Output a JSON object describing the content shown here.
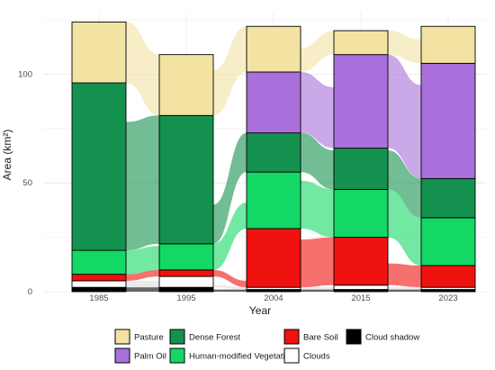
{
  "chart_data": {
    "type": "alluvial",
    "xlabel": "Year",
    "ylabel": "Area (km²)",
    "ylim": [
      0,
      125
    ],
    "yticks": [
      0,
      50,
      100
    ],
    "grid": true,
    "legend_position": "bottom",
    "categories": [
      "1985",
      "1995",
      "2004",
      "2015",
      "2023"
    ],
    "classes": [
      {
        "name": "Pasture",
        "color": "#F2E3A2"
      },
      {
        "name": "Palm Oil",
        "color": "#A970DB"
      },
      {
        "name": "Dense Forest",
        "color": "#15914F"
      },
      {
        "name": "Human-modified Vegetation",
        "color": "#14D865"
      },
      {
        "name": "Bare Soil",
        "color": "#F0120E"
      },
      {
        "name": "Clouds",
        "color": "#FFFFFF"
      },
      {
        "name": "Cloud shadow",
        "color": "#000000"
      }
    ],
    "stack_order_bottom_to_top": [
      "Cloud shadow",
      "Clouds",
      "Bare Soil",
      "Human-modified Vegetation",
      "Dense Forest",
      "Palm Oil",
      "Pasture"
    ],
    "series": [
      {
        "name": "Pasture",
        "values": [
          28,
          28,
          21,
          11,
          17
        ]
      },
      {
        "name": "Palm Oil",
        "values": [
          0,
          0,
          28,
          43,
          53
        ]
      },
      {
        "name": "Dense Forest",
        "values": [
          77,
          59,
          18,
          19,
          18
        ]
      },
      {
        "name": "Human-modified Vegetation",
        "values": [
          11,
          12,
          26,
          22,
          22
        ]
      },
      {
        "name": "Bare Soil",
        "values": [
          3,
          3,
          27,
          22,
          10
        ]
      },
      {
        "name": "Clouds",
        "values": [
          3,
          5,
          1,
          2,
          1
        ]
      },
      {
        "name": "Cloud shadow",
        "values": [
          2,
          2,
          1,
          1,
          1
        ]
      }
    ]
  },
  "legend": {
    "items": [
      {
        "label": "Pasture",
        "color": "#F2E3A2"
      },
      {
        "label": "Dense Forest",
        "color": "#15914F"
      },
      {
        "label": "Bare Soil",
        "color": "#F0120E"
      },
      {
        "label": "Cloud shadow",
        "color": "#000000"
      },
      {
        "label": "Palm Oil",
        "color": "#A970DB"
      },
      {
        "label": "Human-modified Vegetation",
        "color": "#14D865"
      },
      {
        "label": "Clouds",
        "color": "#FFFFFF"
      }
    ]
  }
}
